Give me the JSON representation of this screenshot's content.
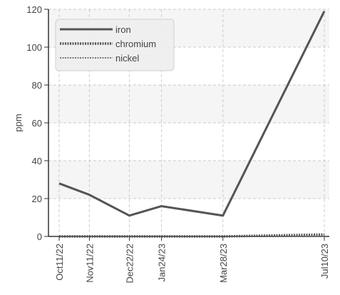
{
  "chart_data": {
    "type": "line",
    "title": "",
    "xlabel": "",
    "ylabel": "ppm",
    "categories": [
      "Oct11/22",
      "Nov11/22",
      "Dec22/22",
      "Jan24/23",
      "Mar28/23",
      "Jul10/23"
    ],
    "x_dates": [
      "2022-10-11",
      "2022-11-11",
      "2022-12-22",
      "2023-01-24",
      "2023-03-28",
      "2023-07-10"
    ],
    "ylim": [
      0,
      120
    ],
    "yticks": [
      0,
      20,
      40,
      60,
      80,
      100,
      120
    ],
    "grid": true,
    "legend_position": "top-left",
    "series": [
      {
        "name": "iron",
        "values": [
          28,
          22,
          11,
          16,
          11,
          119
        ],
        "color": "#555555",
        "style": "solid"
      },
      {
        "name": "chromium",
        "values": [
          0,
          0,
          0,
          0,
          0,
          1
        ],
        "color": "#555555",
        "style": "dotted"
      },
      {
        "name": "nickel",
        "values": [
          0,
          0,
          0,
          0,
          0,
          0
        ],
        "color": "#777777",
        "style": "dotted-thin"
      }
    ]
  }
}
